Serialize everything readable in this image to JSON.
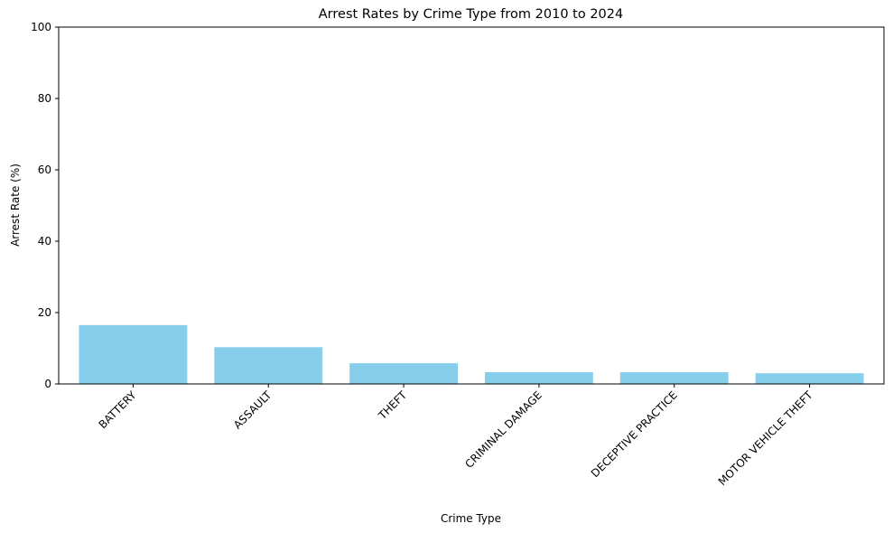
{
  "chart_data": {
    "type": "bar",
    "title": "Arrest Rates by Crime Type from 2010 to 2024",
    "xlabel": "Crime Type",
    "ylabel": "Arrest Rate (%)",
    "categories": [
      "BATTERY",
      "ASSAULT",
      "THEFT",
      "CRIMINAL DAMAGE",
      "DECEPTIVE PRACTICE",
      "MOTOR VEHICLE THEFT"
    ],
    "values": [
      16.5,
      10.3,
      5.8,
      3.3,
      3.3,
      3.0
    ],
    "ylim": [
      0,
      100
    ],
    "yticks": [
      0,
      20,
      40,
      60,
      80,
      100
    ],
    "bar_color": "#87CEEB",
    "grid": false,
    "legend": "none"
  }
}
